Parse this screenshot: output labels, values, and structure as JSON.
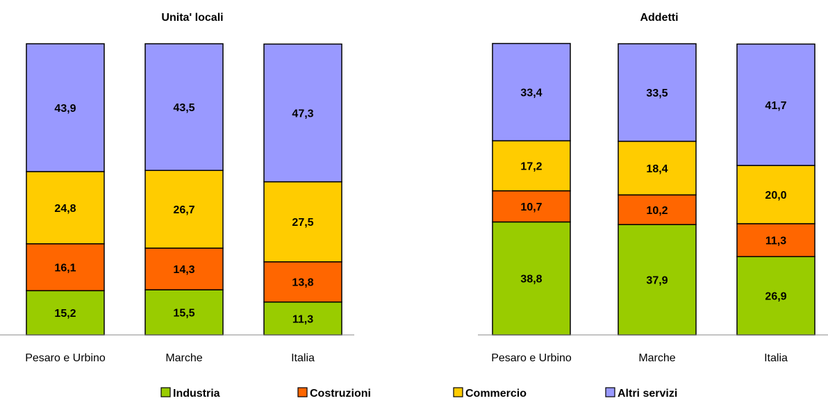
{
  "chart_data": [
    {
      "type": "bar",
      "stacked": true,
      "title": "Unita' locali",
      "categories": [
        "Pesaro e Urbino",
        "Marche",
        "Italia"
      ],
      "series": [
        {
          "name": "Industria",
          "values": [
            15.2,
            15.5,
            11.3
          ]
        },
        {
          "name": "Costruzioni",
          "values": [
            16.1,
            14.3,
            13.8
          ]
        },
        {
          "name": "Commercio",
          "values": [
            24.8,
            26.7,
            27.5
          ]
        },
        {
          "name": "Altri servizi",
          "values": [
            43.9,
            43.5,
            47.3
          ]
        }
      ],
      "ylim": [
        0,
        100
      ],
      "grid": false
    },
    {
      "type": "bar",
      "stacked": true,
      "title": "Addetti",
      "categories": [
        "Pesaro e Urbino",
        "Marche",
        "Italia"
      ],
      "series": [
        {
          "name": "Industria",
          "values": [
            38.8,
            37.9,
            26.9
          ]
        },
        {
          "name": "Costruzioni",
          "values": [
            10.7,
            10.2,
            11.3
          ]
        },
        {
          "name": "Commercio",
          "values": [
            17.2,
            18.4,
            20.0
          ]
        },
        {
          "name": "Altri servizi",
          "values": [
            33.4,
            33.5,
            41.7
          ]
        }
      ],
      "ylim": [
        0,
        100
      ],
      "grid": false
    }
  ],
  "legend": {
    "placement": "bottom",
    "items": [
      {
        "label": "Industria",
        "color": "#99CC00"
      },
      {
        "label": "Costruzioni",
        "color": "#FF6600"
      },
      {
        "label": "Commercio",
        "color": "#FFCC00"
      },
      {
        "label": "Altri servizi",
        "color": "#9999FF"
      }
    ]
  },
  "number_format": {
    "decimal_separator": ",",
    "decimals": 1
  }
}
